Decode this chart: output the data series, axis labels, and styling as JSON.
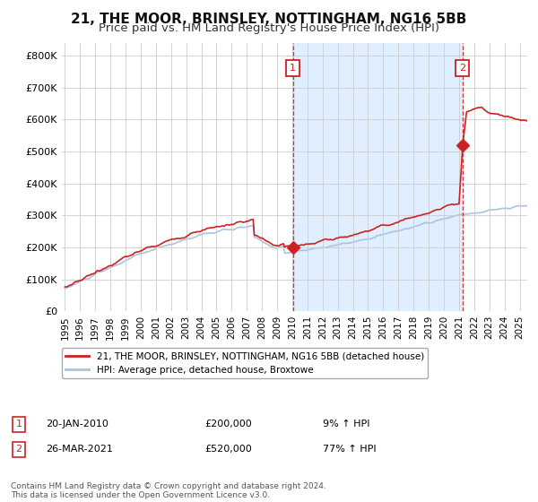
{
  "title": "21, THE MOOR, BRINSLEY, NOTTINGHAM, NG16 5BB",
  "subtitle": "Price paid vs. HM Land Registry's House Price Index (HPI)",
  "title_fontsize": 11,
  "subtitle_fontsize": 9.5,
  "ylabel_values": [
    "£0",
    "£100K",
    "£200K",
    "£300K",
    "£400K",
    "£500K",
    "£600K",
    "£700K",
    "£800K"
  ],
  "yticks": [
    0,
    100000,
    200000,
    300000,
    400000,
    500000,
    600000,
    700000,
    800000
  ],
  "ylim": [
    0,
    840000
  ],
  "xlim_start": 1994.8,
  "xlim_end": 2025.5,
  "line_color_hpi": "#aac4e0",
  "line_color_price": "#cc2222",
  "shade_color": "#ddeeff",
  "marker1_date": 2010.05,
  "marker1_price": 200000,
  "marker2_date": 2021.23,
  "marker2_price": 520000,
  "legend_label1": "21, THE MOOR, BRINSLEY, NOTTINGHAM, NG16 5BB (detached house)",
  "legend_label2": "HPI: Average price, detached house, Broxtowe",
  "table_row1": [
    "1",
    "20-JAN-2010",
    "£200,000",
    "9% ↑ HPI"
  ],
  "table_row2": [
    "2",
    "26-MAR-2021",
    "£520,000",
    "77% ↑ HPI"
  ],
  "footer": "Contains HM Land Registry data © Crown copyright and database right 2024.\nThis data is licensed under the Open Government Licence v3.0.",
  "background_color": "#ffffff",
  "grid_color": "#cccccc"
}
